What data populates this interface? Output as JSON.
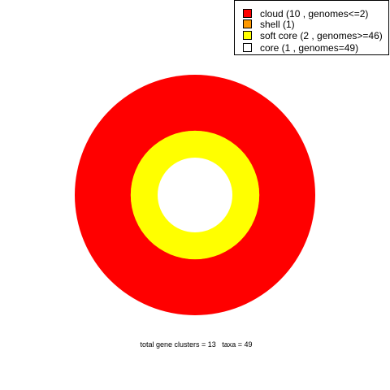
{
  "chart_data": {
    "type": "pie",
    "style": "concentric-rings",
    "total_gene_clusters": 13,
    "taxa": 49,
    "categories": [
      {
        "name": "cloud",
        "label": "cloud  (10 , genomes<=2)",
        "count": 10,
        "color": "#ff0000"
      },
      {
        "name": "shell",
        "label": "shell  (1)",
        "count": 1,
        "color": "#ff9900"
      },
      {
        "name": "soft core",
        "label": "soft core  (2 , genomes>=46)",
        "count": 2,
        "color": "#ffff00"
      },
      {
        "name": "core",
        "label": "core  (1 , genomes=49)",
        "count": 1,
        "color": "#ffffff"
      }
    ],
    "caption": "total gene clusters = 13   taxa = 49"
  }
}
